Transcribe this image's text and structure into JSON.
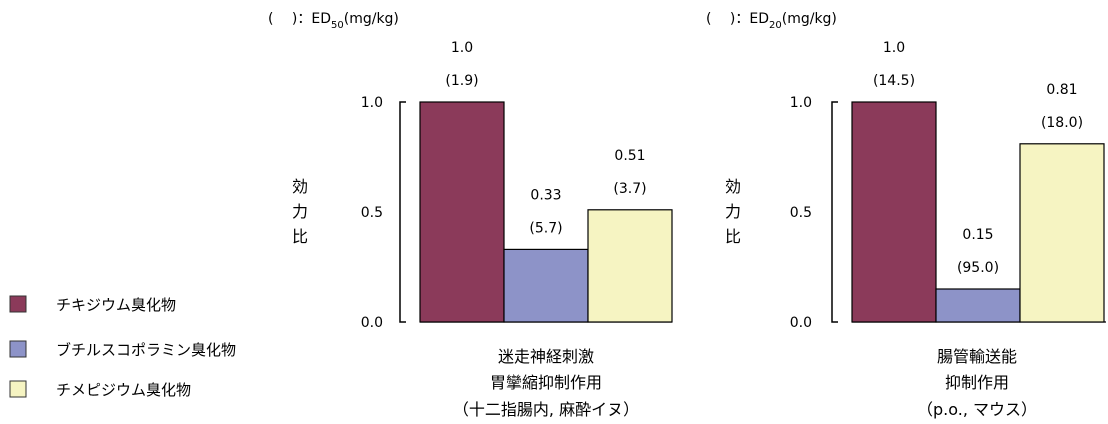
{
  "legend": [
    {
      "label": "チキジウム臭化物",
      "color": "#8b3a5a"
    },
    {
      "label": "ブチルスコポラミン臭化物",
      "color": "#8d93c8"
    },
    {
      "label": "チメピジウム臭化物",
      "color": "#f6f4c2"
    }
  ],
  "chart_data": [
    {
      "type": "bar",
      "note_prefix": "(　 )：ED",
      "note_sub": "50",
      "note_suffix": "(mg/kg)",
      "ylabel": "効力比",
      "ylim": [
        0,
        1.0
      ],
      "yticks": [
        "0.0",
        "0.5",
        "1.0"
      ],
      "category_lines": [
        "迷走神経刺激",
        "胃攣縮抑制作用",
        "（十二指腸内, 麻酔イヌ）"
      ],
      "values": [
        1.0,
        0.33,
        0.51
      ],
      "value_labels": [
        "1.0",
        "0.33",
        "0.51"
      ],
      "ed_labels": [
        "(1.9)",
        "(5.7)",
        "(3.7)"
      ]
    },
    {
      "type": "bar",
      "note_prefix": "(　 )：ED",
      "note_sub": "20",
      "note_suffix": "(mg/kg)",
      "ylabel": "効力比",
      "ylim": [
        0,
        1.0
      ],
      "yticks": [
        "0.0",
        "0.5",
        "1.0"
      ],
      "category_lines": [
        "腸管輸送能",
        "抑制作用",
        "（p.o., マウス）"
      ],
      "values": [
        1.0,
        0.15,
        0.81
      ],
      "value_labels": [
        "1.0",
        "0.15",
        "0.81"
      ],
      "ed_labels": [
        "(14.5)",
        "(95.0)",
        "(18.0)"
      ]
    }
  ]
}
